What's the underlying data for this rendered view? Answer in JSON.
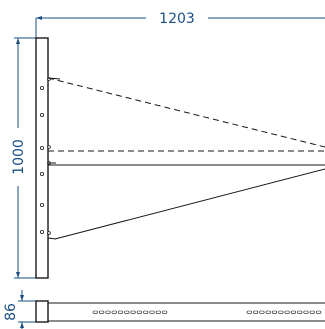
{
  "dimensions": {
    "overall_length": "1203",
    "height": "1000",
    "profile_height": "86"
  },
  "colors": {
    "dimension": "#1a4f86",
    "outline": "#1a1a1a",
    "background": "#ffffff"
  }
}
